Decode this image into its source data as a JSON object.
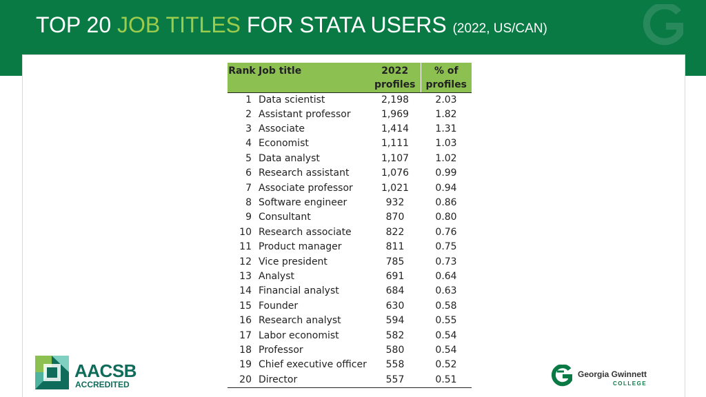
{
  "title": {
    "part1": "TOP 20 ",
    "part2": "JOB TITLES",
    "part3": " FOR STATA USERS ",
    "part4": "(2022, US/CAN)"
  },
  "colors": {
    "header_green": "#0a7a45",
    "title_accent": "#9ccc4d",
    "table_header": "#8cc152"
  },
  "table": {
    "headers": {
      "rank": "Rank",
      "title": "Job title",
      "profiles_1": "2022",
      "profiles_2": "profiles",
      "pct_1": "% of",
      "pct_2": "profiles"
    },
    "rows": [
      {
        "rank": "1",
        "title": "Data scientist",
        "profiles": "2,198",
        "pct": "2.03"
      },
      {
        "rank": "2",
        "title": "Assistant professor",
        "profiles": "1,969",
        "pct": "1.82"
      },
      {
        "rank": "3",
        "title": "Associate",
        "profiles": "1,414",
        "pct": "1.31"
      },
      {
        "rank": "4",
        "title": "Economist",
        "profiles": "1,111",
        "pct": "1.03"
      },
      {
        "rank": "5",
        "title": "Data analyst",
        "profiles": "1,107",
        "pct": "1.02"
      },
      {
        "rank": "6",
        "title": "Research assistant",
        "profiles": "1,076",
        "pct": "0.99"
      },
      {
        "rank": "7",
        "title": "Associate professor",
        "profiles": "1,021",
        "pct": "0.94"
      },
      {
        "rank": "8",
        "title": "Software engineer",
        "profiles": "932",
        "pct": "0.86"
      },
      {
        "rank": "9",
        "title": "Consultant",
        "profiles": "870",
        "pct": "0.80"
      },
      {
        "rank": "10",
        "title": "Research associate",
        "profiles": "822",
        "pct": "0.76"
      },
      {
        "rank": "11",
        "title": "Product manager",
        "profiles": "811",
        "pct": "0.75"
      },
      {
        "rank": "12",
        "title": "Vice president",
        "profiles": "785",
        "pct": "0.73"
      },
      {
        "rank": "13",
        "title": "Analyst",
        "profiles": "691",
        "pct": "0.64"
      },
      {
        "rank": "14",
        "title": "Financial analyst",
        "profiles": "684",
        "pct": "0.63"
      },
      {
        "rank": "15",
        "title": "Founder",
        "profiles": "630",
        "pct": "0.58"
      },
      {
        "rank": "16",
        "title": "Research analyst",
        "profiles": "594",
        "pct": "0.55"
      },
      {
        "rank": "17",
        "title": "Labor economist",
        "profiles": "582",
        "pct": "0.54"
      },
      {
        "rank": "18",
        "title": "Professor",
        "profiles": "580",
        "pct": "0.54"
      },
      {
        "rank": "19",
        "title": "Chief executive officer",
        "profiles": "558",
        "pct": "0.52"
      },
      {
        "rank": "20",
        "title": "Director",
        "profiles": "557",
        "pct": "0.51"
      }
    ]
  },
  "logos": {
    "aacsb_name": "AACSB",
    "aacsb_sub": "ACCREDITED",
    "aacsb_icon": "aacsb-icon",
    "ggc_name": "Georgia Gwinnett",
    "ggc_sub": "COLLEGE",
    "ggc_icon": "ggc-g-icon"
  }
}
